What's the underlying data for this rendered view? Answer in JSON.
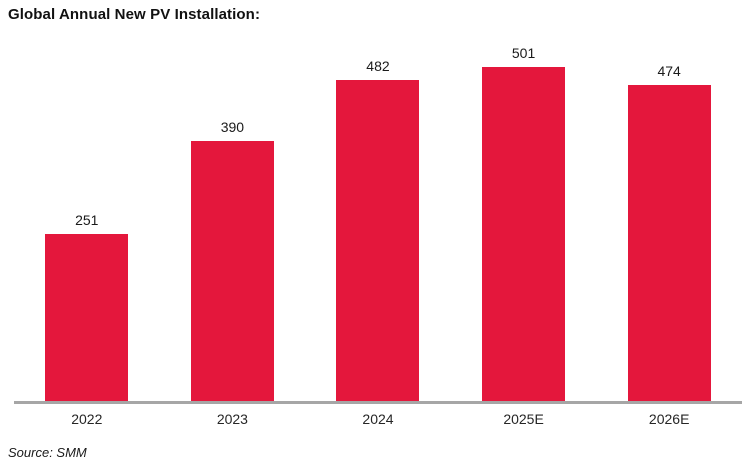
{
  "header": {
    "title": "Global Annual New PV Installation:"
  },
  "chart_data": {
    "type": "bar",
    "title": "Global Annual New PV Installation:",
    "categories": [
      "2022",
      "2023",
      "2024",
      "2025E",
      "2026E"
    ],
    "values": [
      251,
      390,
      482,
      501,
      474
    ],
    "xlabel": "",
    "ylabel": "",
    "ylim": [
      0,
      540
    ],
    "grid": false,
    "legend": "none",
    "value_labels": true,
    "bar_color": "#E4173C",
    "axis_color": "#A6A6A6",
    "value_label_color": "#1a1a1a",
    "tick_label_color": "#262626"
  },
  "footer": {
    "source": "Source: SMM"
  }
}
